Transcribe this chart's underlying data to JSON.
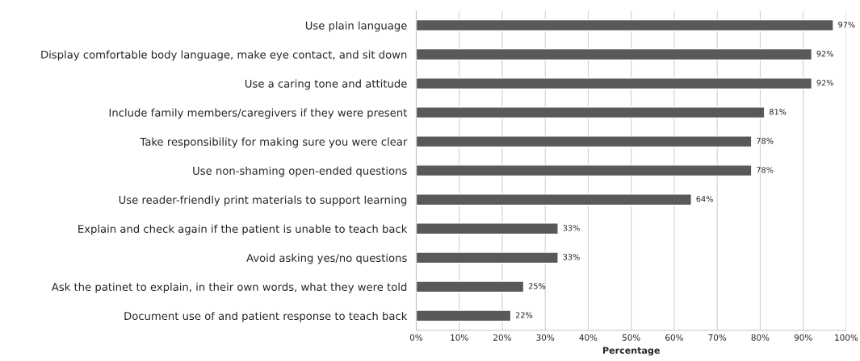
{
  "chart_data": {
    "type": "bar",
    "orientation": "horizontal",
    "xlabel": "Percentage",
    "categories": [
      "Use plain language",
      "Display comfortable body language, make eye contact, and sit down",
      "Use a caring tone and attitude",
      "Include family members/caregivers if they were present",
      "Take responsibility for making sure you were clear",
      "Use non-shaming open-ended questions",
      "Use reader-friendly print materials to support learning",
      "Explain and check again if the patient is unable to teach back",
      "Avoid asking yes/no questions",
      "Ask the patinet to explain, in their own words, what they were told",
      "Document use of and patient response to teach back"
    ],
    "values": [
      97,
      92,
      92,
      81,
      78,
      78,
      64,
      33,
      33,
      25,
      22
    ],
    "value_labels": [
      "97%",
      "92%",
      "92%",
      "81%",
      "78%",
      "78%",
      "64%",
      "33%",
      "33%",
      "25%",
      "22%"
    ],
    "color": "#595959",
    "xlim": [
      0,
      100
    ],
    "xticks": [
      {
        "value": 0,
        "label": "0%"
      },
      {
        "value": 10,
        "label": "10%"
      },
      {
        "value": 20,
        "label": "20%"
      },
      {
        "value": 30,
        "label": "30%"
      },
      {
        "value": 40,
        "label": "40%"
      },
      {
        "value": 50,
        "label": "50%"
      },
      {
        "value": 60,
        "label": "60%"
      },
      {
        "value": 70,
        "label": "70%"
      },
      {
        "value": 80,
        "label": "80%"
      },
      {
        "value": 90,
        "label": "90%"
      },
      {
        "value": 100,
        "label": "100%"
      }
    ],
    "grid": "x"
  }
}
